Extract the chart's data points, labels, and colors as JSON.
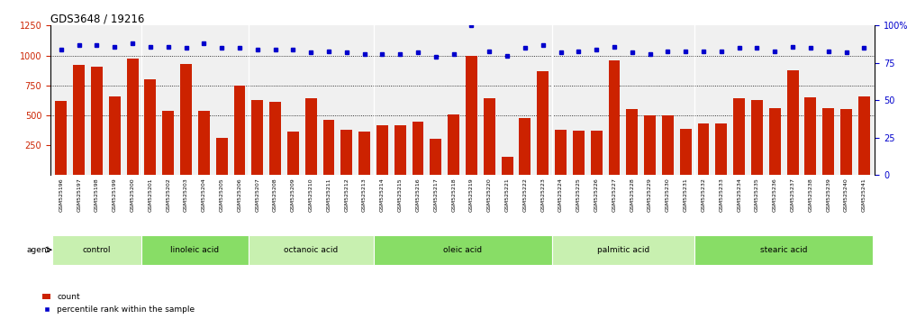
{
  "title": "GDS3648 / 19216",
  "samples": [
    "GSM525196",
    "GSM525197",
    "GSM525198",
    "GSM525199",
    "GSM525200",
    "GSM525201",
    "GSM525202",
    "GSM525203",
    "GSM525204",
    "GSM525205",
    "GSM525206",
    "GSM525207",
    "GSM525208",
    "GSM525209",
    "GSM525210",
    "GSM525211",
    "GSM525212",
    "GSM525213",
    "GSM525214",
    "GSM525215",
    "GSM525216",
    "GSM525217",
    "GSM525218",
    "GSM525219",
    "GSM525220",
    "GSM525221",
    "GSM525222",
    "GSM525223",
    "GSM525224",
    "GSM525225",
    "GSM525226",
    "GSM525227",
    "GSM525228",
    "GSM525229",
    "GSM525230",
    "GSM525231",
    "GSM525232",
    "GSM525233",
    "GSM525234",
    "GSM525235",
    "GSM525236",
    "GSM525237",
    "GSM525238",
    "GSM525239",
    "GSM525240",
    "GSM525241"
  ],
  "counts": [
    620,
    920,
    905,
    660,
    975,
    800,
    540,
    930,
    535,
    310,
    750,
    625,
    615,
    360,
    640,
    460,
    380,
    365,
    415,
    420,
    445,
    305,
    505,
    1000,
    640,
    155,
    480,
    870,
    380,
    370,
    370,
    960,
    550,
    500,
    500,
    385,
    430,
    430,
    640,
    630,
    560,
    875,
    650,
    560,
    550,
    660
  ],
  "percentile_ranks": [
    84,
    87,
    87,
    86,
    88,
    86,
    86,
    85,
    88,
    85,
    85,
    84,
    84,
    84,
    82,
    83,
    82,
    81,
    81,
    81,
    82,
    79,
    81,
    100,
    83,
    80,
    85,
    87,
    82,
    83,
    84,
    86,
    82,
    81,
    83,
    83,
    83,
    83,
    85,
    85,
    83,
    86,
    85,
    83,
    82,
    85
  ],
  "groups": [
    {
      "label": "control",
      "start": 0,
      "end": 5,
      "shade": 0
    },
    {
      "label": "linoleic acid",
      "start": 5,
      "end": 11,
      "shade": 1
    },
    {
      "label": "octanoic acid",
      "start": 11,
      "end": 18,
      "shade": 0
    },
    {
      "label": "oleic acid",
      "start": 18,
      "end": 28,
      "shade": 1
    },
    {
      "label": "palmitic acid",
      "start": 28,
      "end": 36,
      "shade": 0
    },
    {
      "label": "stearic acid",
      "start": 36,
      "end": 46,
      "shade": 1
    }
  ],
  "group_colors": [
    "#c8f0b0",
    "#88dd66"
  ],
  "bar_color": "#cc2200",
  "dot_color": "#0000cc",
  "ylim_left": [
    0,
    1250
  ],
  "ylim_right": [
    0,
    100
  ],
  "yticks_left": [
    250,
    500,
    750,
    1000,
    1250
  ],
  "yticks_right": [
    0,
    25,
    50,
    75,
    100
  ],
  "grid_values": [
    500,
    750,
    1000
  ],
  "plot_bg": "#f0f0f0",
  "ticklabel_bg": "#d0d0d0"
}
